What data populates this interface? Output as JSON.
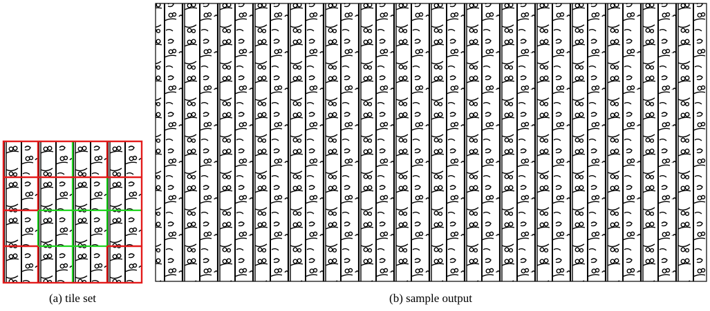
{
  "figure": {
    "panels": [
      {
        "caption": "(a) tile set"
      },
      {
        "caption": "(b) sample output"
      }
    ]
  }
}
